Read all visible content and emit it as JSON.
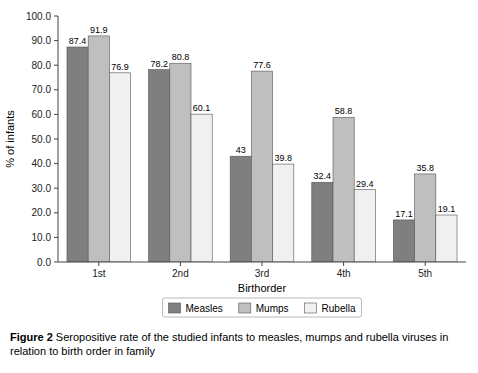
{
  "chart_data": {
    "type": "bar",
    "categories": [
      "1st",
      "2nd",
      "3rd",
      "4th",
      "5th"
    ],
    "series": [
      {
        "name": "Measles",
        "color": "#7f7f7f",
        "values": [
          87.4,
          78.2,
          43.0,
          32.4,
          17.1
        ]
      },
      {
        "name": "Mumps",
        "color": "#bfbfbf",
        "values": [
          91.9,
          80.8,
          77.6,
          58.8,
          35.8
        ]
      },
      {
        "name": "Rubella",
        "color": "#f0f0f0",
        "values": [
          76.9,
          60.1,
          39.8,
          29.4,
          19.1
        ]
      }
    ],
    "x_label": "Birthorder",
    "y_label": "% of infants",
    "ylim": [
      0,
      100
    ],
    "yticks": [
      {
        "value": 0,
        "label": "0.0"
      },
      {
        "value": 10,
        "label": "10.0"
      },
      {
        "value": 20,
        "label": "20.0"
      },
      {
        "value": 30,
        "label": "30.0"
      },
      {
        "value": 40,
        "label": "40.0"
      },
      {
        "value": 50,
        "label": "50.0"
      },
      {
        "value": 60,
        "label": "60.0"
      },
      {
        "value": 70,
        "label": "70.0"
      },
      {
        "value": 80,
        "label": "80.0"
      },
      {
        "value": 90,
        "label": "90.0"
      },
      {
        "value": 100,
        "label": "100.0"
      }
    ],
    "data_labels": true,
    "annotations": [
      "Figure 2",
      "Seropositive rate of the studied infants to measles, mumps and rubella viruses in relation to birth order in family"
    ]
  }
}
